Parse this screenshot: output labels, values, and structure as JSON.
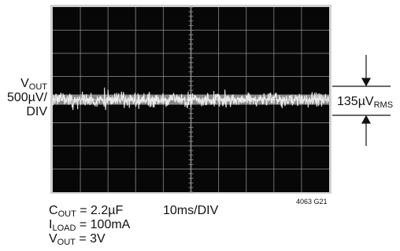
{
  "chart_data": {
    "type": "oscilloscope",
    "grid": {
      "h_divisions": 10,
      "v_divisions": 8
    },
    "y_label_lines": {
      "signal": "V",
      "signal_sub": "OUT",
      "scale": "500µV/",
      "unit": "DIV"
    },
    "time_scale": "10ms/DIV",
    "noise_measurement": {
      "value": "135µV",
      "sub": "RMS"
    },
    "figure_id": "4063 G21",
    "conditions": [
      {
        "sym": "C",
        "sub": "OUT",
        "val": " = 2.2µF"
      },
      {
        "sym": "I",
        "sub": "LOAD",
        "val": " = 100mA"
      },
      {
        "sym": "V",
        "sub": "OUT",
        "val": " = 3V"
      }
    ],
    "colors": {
      "screen": "#070707",
      "grid": "#8a8a8a",
      "trace": "#f4f4f4",
      "bezel": "#c9c9c9"
    }
  }
}
